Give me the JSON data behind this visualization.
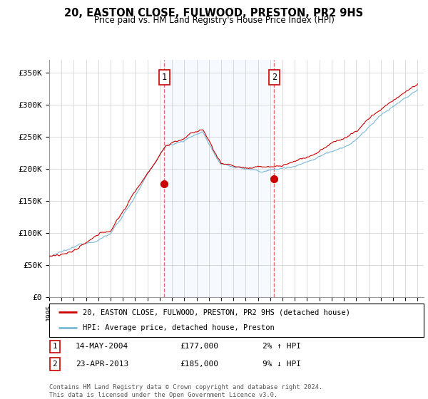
{
  "title": "20, EASTON CLOSE, FULWOOD, PRESTON, PR2 9HS",
  "subtitle": "Price paid vs. HM Land Registry's House Price Index (HPI)",
  "ylabel_ticks": [
    "£0",
    "£50K",
    "£100K",
    "£150K",
    "£200K",
    "£250K",
    "£300K",
    "£350K"
  ],
  "ytick_values": [
    0,
    50000,
    100000,
    150000,
    200000,
    250000,
    300000,
    350000
  ],
  "ylim": [
    0,
    370000
  ],
  "xlim_start": 1995.0,
  "xlim_end": 2025.5,
  "sale1_x": 2004.37,
  "sale1_y": 177000,
  "sale1_label": "1",
  "sale1_date": "14-MAY-2004",
  "sale1_price": "£177,000",
  "sale1_hpi": "2% ↑ HPI",
  "sale2_x": 2013.32,
  "sale2_y": 185000,
  "sale2_label": "2",
  "sale2_date": "23-APR-2013",
  "sale2_price": "£185,000",
  "sale2_hpi": "9% ↓ HPI",
  "hpi_color": "#7ab8d8",
  "sale_color": "#cc0000",
  "vline_color": "#e87070",
  "marker_color": "#cc0000",
  "shade_color": "#ddeeff",
  "legend_line1": "20, EASTON CLOSE, FULWOOD, PRESTON, PR2 9HS (detached house)",
  "legend_line2": "HPI: Average price, detached house, Preston",
  "footnote": "Contains HM Land Registry data © Crown copyright and database right 2024.\nThis data is licensed under the Open Government Licence v3.0.",
  "xtick_years": [
    1995,
    1996,
    1997,
    1998,
    1999,
    2000,
    2001,
    2002,
    2003,
    2004,
    2005,
    2006,
    2007,
    2008,
    2009,
    2010,
    2011,
    2012,
    2013,
    2014,
    2015,
    2016,
    2017,
    2018,
    2019,
    2020,
    2021,
    2022,
    2023,
    2024,
    2025
  ],
  "background_color": "#ffffff",
  "grid_color": "#cccccc"
}
